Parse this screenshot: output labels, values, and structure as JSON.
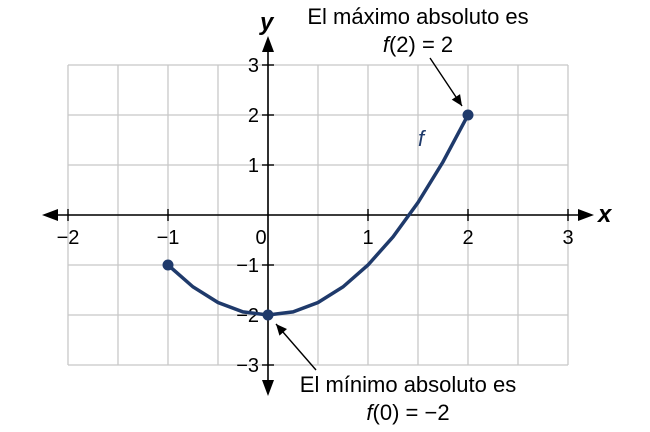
{
  "chart_data": {
    "type": "line",
    "x_axis_label": "x",
    "y_axis_label": "y",
    "xlim": [
      -2,
      3
    ],
    "ylim": [
      -3,
      3
    ],
    "grid": true,
    "x_ticks": [
      {
        "value": -2,
        "label": "−2"
      },
      {
        "value": -1,
        "label": "−1"
      },
      {
        "value": 0,
        "label": "0"
      },
      {
        "value": 1,
        "label": "1"
      },
      {
        "value": 2,
        "label": "2"
      },
      {
        "value": 3,
        "label": "3"
      }
    ],
    "y_ticks": [
      {
        "value": -3,
        "label": "−3"
      },
      {
        "value": -2,
        "label": "−2"
      },
      {
        "value": -1,
        "label": "−1"
      },
      {
        "value": 1,
        "label": "1"
      },
      {
        "value": 2,
        "label": "2"
      },
      {
        "value": 3,
        "label": "3"
      }
    ],
    "series": [
      {
        "name": "f",
        "color": "#1f3a6b",
        "x": [
          -1,
          -0.75,
          -0.5,
          -0.25,
          0,
          0.25,
          0.5,
          0.75,
          1,
          1.25,
          1.5,
          1.75,
          2
        ],
        "y": [
          -1,
          -1.4375,
          -1.75,
          -1.9375,
          -2,
          -1.9375,
          -1.75,
          -1.4375,
          -1,
          -0.4375,
          0.25,
          1.0625,
          2
        ]
      }
    ],
    "points": [
      {
        "x": -1,
        "y": -1
      },
      {
        "x": 0,
        "y": -2
      },
      {
        "x": 2,
        "y": 2
      }
    ],
    "annotations": [
      {
        "line1": "El máximo absoluto es",
        "line2_fn": "f",
        "line2_rest": "(2) = 2",
        "point": {
          "x": 2,
          "y": 2
        }
      },
      {
        "line1": "El mínimo absoluto es",
        "line2_fn": "f",
        "line2_rest": "(0) = −2",
        "point": {
          "x": 0,
          "y": -2
        }
      }
    ]
  }
}
